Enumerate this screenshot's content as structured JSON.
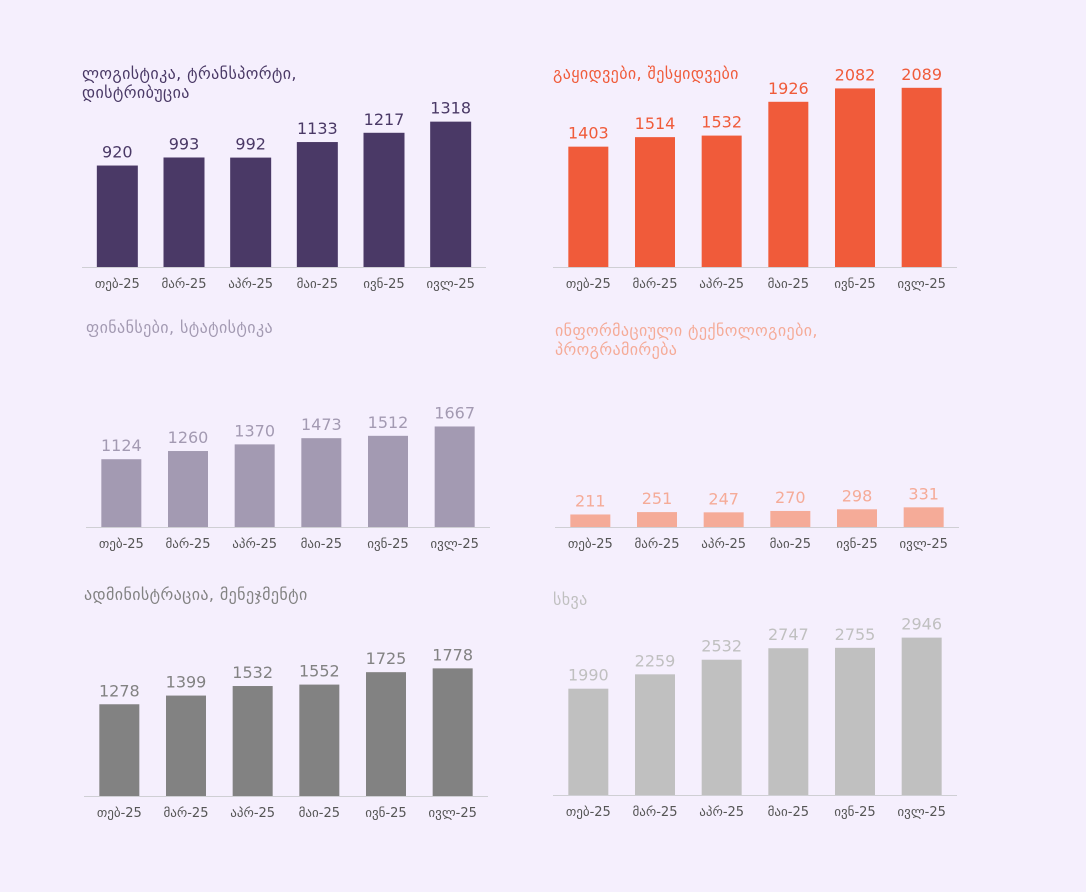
{
  "chart_data": [
    {
      "type": "bar",
      "title": "ლოგისტიკა, ტრანსპორტი, დისტრიბუცია",
      "categories": [
        "თებ-25",
        "მარ-25",
        "აპრ-25",
        "მაი-25",
        "ივნ-25",
        "ივლ-25"
      ],
      "values": [
        920,
        993,
        992,
        1133,
        1217,
        1318
      ],
      "ylim": [
        0,
        1750
      ],
      "grid": false,
      "color": "#4a3966"
    },
    {
      "type": "bar",
      "title": "გაყიდვები, შესყიდვები",
      "categories": [
        "თებ-25",
        "მარ-25",
        "აპრ-25",
        "მაი-25",
        "ივნ-25",
        "ივლ-25"
      ],
      "values": [
        1403,
        1514,
        1532,
        1926,
        2082,
        2089
      ],
      "ylim": [
        0,
        2250
      ],
      "grid": false,
      "color": "#f05b3a"
    },
    {
      "type": "bar",
      "title": "ფინანსები, სტატისტიკა",
      "categories": [
        "თებ-25",
        "მარ-25",
        "აპრ-25",
        "მაი-25",
        "ივნ-25",
        "ივლ-25"
      ],
      "values": [
        1124,
        1260,
        1370,
        1473,
        1512,
        1667
      ],
      "ylim": [
        0,
        3300
      ],
      "grid": false,
      "color": "#a39ab2"
    },
    {
      "type": "bar",
      "title": "ინფორმაციული ტექნოლოგიები, პროგრამირება",
      "categories": [
        "თებ-25",
        "მარ-25",
        "აპრ-25",
        "მაი-25",
        "ივნ-25",
        "ივლ-25"
      ],
      "values": [
        211,
        251,
        247,
        270,
        298,
        331
      ],
      "ylim": [
        0,
        3300
      ],
      "grid": false,
      "color": "#f5ab98"
    },
    {
      "type": "bar",
      "title": "ადმინისტრაცია, მენეჯმენტი",
      "categories": [
        "თებ-25",
        "მარ-25",
        "აპრ-25",
        "მაი-25",
        "ივნ-25",
        "ივლ-25"
      ],
      "values": [
        1278,
        1399,
        1532,
        1552,
        1725,
        1778
      ],
      "ylim": [
        0,
        2800
      ],
      "grid": false,
      "color": "#828282"
    },
    {
      "type": "bar",
      "title": "სხვა",
      "categories": [
        "თებ-25",
        "მარ-25",
        "აპრ-25",
        "მაი-25",
        "ივნ-25",
        "ივლ-25"
      ],
      "values": [
        1990,
        2259,
        2532,
        2747,
        2755,
        2946
      ],
      "ylim": [
        0,
        3650
      ],
      "grid": false,
      "color": "#c0c0c0"
    }
  ]
}
